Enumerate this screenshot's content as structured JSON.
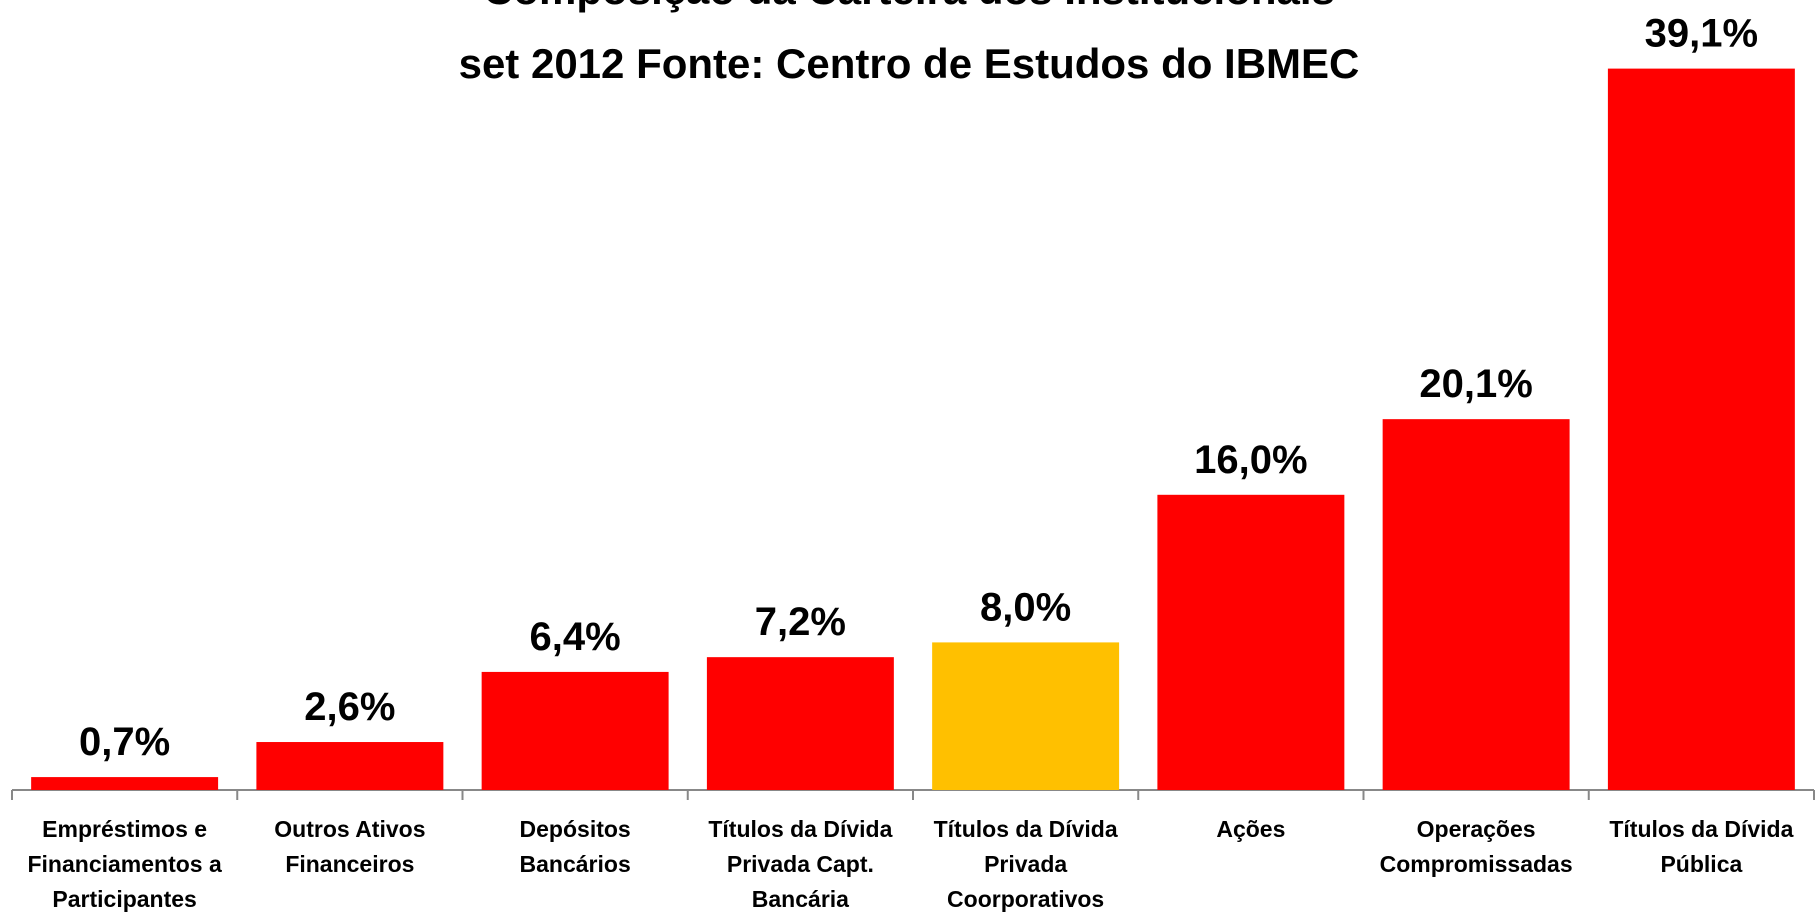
{
  "chart_data": {
    "type": "bar",
    "title": "Composição da Carteira dos Institucionais",
    "subtitle": "set 2012 Fonte: Centro de Estudos do IBMEC",
    "categories": [
      "Empréstimos e Financiamentos a Participantes",
      "Outros Ativos Financeiros",
      "Depósitos Bancários",
      "Títulos da Dívida Privada Capt. Bancária",
      "Títulos da Dívida Privada Coorporativos",
      "Ações",
      "Operações Compromissadas",
      "Títulos da Dívida Pública"
    ],
    "values": [
      0.7,
      2.6,
      6.4,
      7.2,
      8.0,
      16.0,
      20.1,
      39.1
    ],
    "value_labels": [
      "0,7%",
      "2,6%",
      "6,4%",
      "7,2%",
      "8,0%",
      "16,0%",
      "20,1%",
      "39,1%"
    ],
    "colors": [
      "#ff0000",
      "#ff0000",
      "#ff0000",
      "#ff0000",
      "#ffc000",
      "#ff0000",
      "#ff0000",
      "#ff0000"
    ]
  }
}
